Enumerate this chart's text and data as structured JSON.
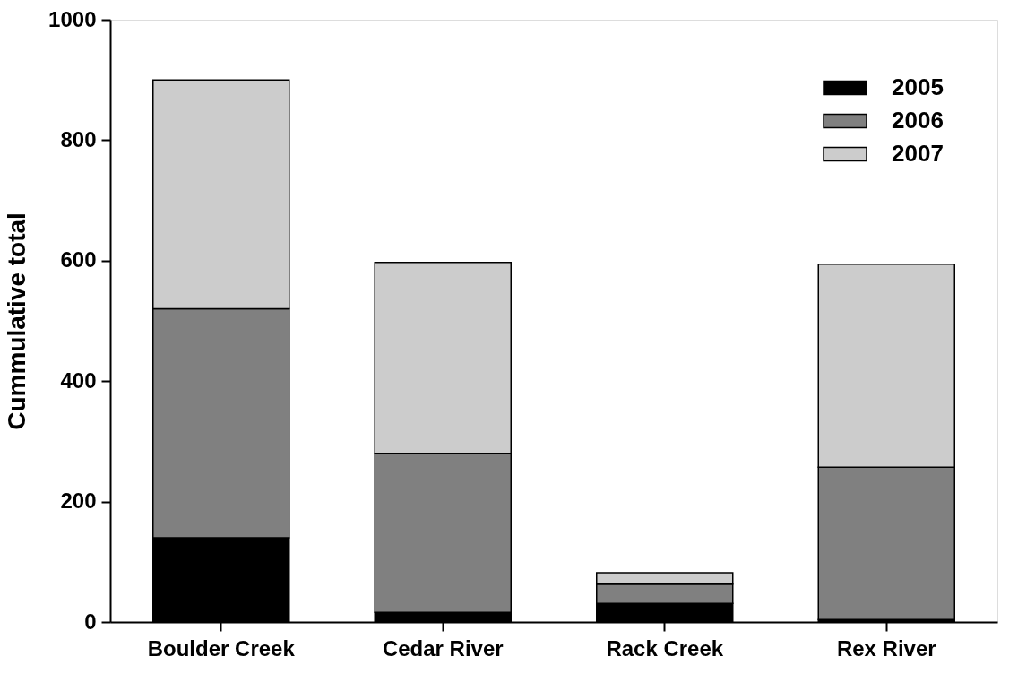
{
  "chart_data": {
    "type": "bar",
    "stacked": true,
    "ylabel": "Cummulative total",
    "categories": [
      "Boulder Creek",
      "Cedar River",
      "Rack Creek",
      "Rex River"
    ],
    "series": [
      {
        "name": "2005",
        "color": "#000000",
        "values": [
          140,
          16,
          31,
          4
        ]
      },
      {
        "name": "2006",
        "color": "#808080",
        "values": [
          380,
          264,
          32,
          253
        ]
      },
      {
        "name": "2007",
        "color": "#cccccc",
        "values": [
          380,
          317,
          19,
          337
        ]
      }
    ],
    "ylim": [
      0,
      1000
    ],
    "yticks": [
      0,
      200,
      400,
      600,
      800,
      1000
    ],
    "grid": false,
    "legend": "top right"
  }
}
